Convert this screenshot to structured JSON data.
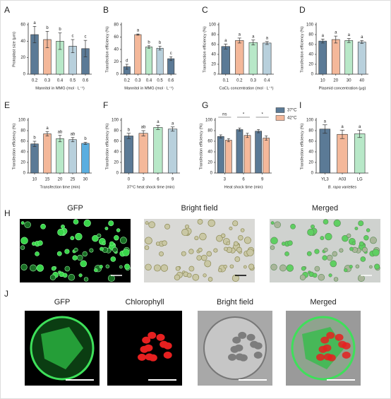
{
  "chart_data": [
    {
      "type": "bar",
      "panel": "A",
      "ylabel": "Protoplast size (μm)",
      "xlabel": "Mannitol in MMG (mol · L⁻¹)",
      "categories": [
        "0.2",
        "0.3",
        "0.4",
        "0.5",
        "0.6"
      ],
      "values": [
        48,
        42,
        40,
        34,
        31
      ],
      "errors": [
        10,
        10,
        10,
        8,
        10
      ],
      "annotations": [
        "a",
        "b",
        "b",
        "c",
        "c"
      ],
      "colors": [
        "#5b7a96",
        "#f4b89a",
        "#b8e8c8",
        "#b8d0dc",
        "#5b7a96"
      ],
      "ylim": [
        0,
        60
      ],
      "yticks": [
        0,
        20,
        40,
        60
      ]
    },
    {
      "type": "bar",
      "panel": "B",
      "ylabel": "Transfection efficiency (%)",
      "xlabel": "Mannitol in MMG (mol · L⁻¹)",
      "categories": [
        "0.2",
        "0.3",
        "0.4",
        "0.5",
        "0.6"
      ],
      "values": [
        12,
        64,
        44,
        42,
        25
      ],
      "errors": [
        4,
        1,
        2,
        3,
        3
      ],
      "annotations": [
        "d",
        "a",
        "b",
        "b",
        "c"
      ],
      "colors": [
        "#5b7a96",
        "#f4b89a",
        "#b8e8c8",
        "#b8d0dc",
        "#5b7a96"
      ],
      "ylim": [
        0,
        80
      ],
      "yticks": [
        0,
        20,
        40,
        60,
        80
      ]
    },
    {
      "type": "bar",
      "panel": "C",
      "ylabel": "Transfection efficiency (%)",
      "xlabel": "CaCl₂ concentration (mol · L⁻¹)",
      "categories": [
        "0.1",
        "0.2",
        "0.3",
        "0.4"
      ],
      "values": [
        56,
        68,
        64,
        63
      ],
      "errors": [
        5,
        5,
        5,
        3
      ],
      "annotations": [
        "a",
        "a",
        "a",
        "a"
      ],
      "colors": [
        "#5b7a96",
        "#f4b89a",
        "#b8e8c8",
        "#b8d0dc"
      ],
      "ylim": [
        0,
        100
      ],
      "yticks": [
        0,
        20,
        40,
        60,
        80,
        100
      ]
    },
    {
      "type": "bar",
      "panel": "D",
      "ylabel": "Transfection efficiency (%)",
      "xlabel": "Plasmid concentration (μg)",
      "categories": [
        "10",
        "20",
        "30",
        "40"
      ],
      "values": [
        67,
        70,
        68,
        65
      ],
      "errors": [
        4,
        7,
        4,
        3
      ],
      "annotations": [
        "a",
        "a",
        "a",
        "a"
      ],
      "colors": [
        "#5b7a96",
        "#f4b89a",
        "#b8e8c8",
        "#b8d0dc"
      ],
      "ylim": [
        0,
        100
      ],
      "yticks": [
        0,
        20,
        40,
        60,
        80,
        100
      ]
    },
    {
      "type": "bar",
      "panel": "E",
      "ylabel": "Transfection efficiency (%)",
      "xlabel": "Transfection time (min)",
      "categories": [
        "10",
        "15",
        "20",
        "25",
        "30"
      ],
      "values": [
        55,
        74,
        65,
        63,
        56
      ],
      "errors": [
        5,
        4,
        6,
        4,
        2
      ],
      "annotations": [
        "b",
        "a",
        "ab",
        "ab",
        "b"
      ],
      "colors": [
        "#5b7a96",
        "#f4b89a",
        "#b8e8c8",
        "#b8d0dc",
        "#5aaee0"
      ],
      "ylim": [
        0,
        100
      ],
      "yticks": [
        0,
        20,
        40,
        60,
        80,
        100
      ]
    },
    {
      "type": "bar",
      "panel": "F",
      "ylabel": "Transfection efficiency (%)",
      "xlabel": "37°C heat shock time (min)",
      "categories": [
        "0",
        "3",
        "6",
        "9"
      ],
      "values": [
        70,
        75,
        86,
        83
      ],
      "errors": [
        5,
        5,
        4,
        4
      ],
      "annotations": [
        "b",
        "ab",
        "a",
        "a"
      ],
      "colors": [
        "#5b7a96",
        "#f4b89a",
        "#b8e8c8",
        "#b8d0dc"
      ],
      "ylim": [
        0,
        100
      ],
      "yticks": [
        0,
        20,
        40,
        60,
        80,
        100
      ]
    },
    {
      "type": "grouped-bar",
      "panel": "G",
      "ylabel": "Transfection efficiency (%)",
      "xlabel": "Heat shock time (min)",
      "categories": [
        "3",
        "6",
        "9"
      ],
      "series": [
        {
          "name": "37°C",
          "color": "#5b7a96",
          "values": [
            69,
            82,
            79
          ],
          "errors": [
            3,
            3,
            3
          ]
        },
        {
          "name": "42°C",
          "color": "#f4b89a",
          "values": [
            62,
            71,
            66
          ],
          "errors": [
            3,
            4,
            4
          ]
        }
      ],
      "group_annotations": [
        "ns",
        "*",
        "*"
      ],
      "legend": "upper right",
      "ylim": [
        0,
        100
      ],
      "yticks": [
        0,
        20,
        40,
        60,
        80,
        100
      ]
    },
    {
      "type": "bar",
      "panel": "I",
      "ylabel": "Transfection efficiency (%)",
      "xlabel": "B. rapa varieties",
      "categories": [
        "YL3",
        "A03",
        "LG"
      ],
      "values": [
        83,
        73,
        74
      ],
      "errors": [
        8,
        8,
        7
      ],
      "annotations": [
        "a",
        "a",
        "a"
      ],
      "colors": [
        "#5b7a96",
        "#f4b89a",
        "#b8e8c8"
      ],
      "ylim": [
        0,
        100
      ],
      "yticks": [
        0,
        20,
        40,
        60,
        80,
        100
      ]
    }
  ],
  "figures": [
    {
      "panel": "H",
      "titles": [
        "GFP",
        "Bright field",
        "Merged"
      ]
    },
    {
      "panel": "J",
      "titles": [
        "GFP",
        "Chlorophyll",
        "Bright field",
        "Merged"
      ]
    }
  ]
}
